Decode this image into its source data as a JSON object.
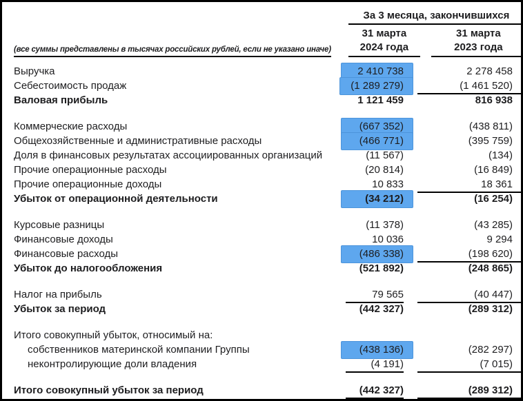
{
  "document": {
    "note": "(все суммы представлены в тысячах российских рублей, если не указано иначе)",
    "period_header": "За 3 месяца, закончившихся",
    "columns": [
      {
        "line1": "31 марта",
        "line2": "2024 года"
      },
      {
        "line1": "31 марта",
        "line2": "2023 года"
      }
    ],
    "colors": {
      "highlight_fill": "#5EA7EE",
      "highlight_border": "#4C94DB",
      "text": "#1D1D1F",
      "rule": "#000000"
    },
    "rows": [
      {
        "label": "Выручка",
        "v2024": "2 410 738",
        "v2023": "2 278 458",
        "hl": true
      },
      {
        "label": "Себестоимость продаж",
        "v2024": "(1 289 279)",
        "v2023": "(1 461 520)",
        "hl": true,
        "line": "single"
      },
      {
        "label": "Валовая прибыль",
        "v2024": "1 121 459",
        "v2023": "816 938",
        "bold": true
      },
      {
        "label": "Коммерческие расходы",
        "v2024": "(667 352)",
        "v2023": "(438 811)",
        "hl": true,
        "group_start": true
      },
      {
        "label": "Общехозяйственные и административные расходы",
        "v2024": "(466 771)",
        "v2023": "(395 759)",
        "hl": true
      },
      {
        "label": "Доля в финансовых результатах ассоциированных организаций",
        "v2024": "(11 567)",
        "v2023": "(134)"
      },
      {
        "label": "Прочие операционные расходы",
        "v2024": "(20 814)",
        "v2023": "(16 849)"
      },
      {
        "label": "Прочие операционные доходы",
        "v2024": "10 833",
        "v2023": "18 361",
        "line": "single"
      },
      {
        "label": "Убыток от операционной деятельности",
        "v2024": "(34 212)",
        "v2023": "(16 254)",
        "bold": true,
        "hl": true
      },
      {
        "label": "Курсовые разницы",
        "v2024": "(11 378)",
        "v2023": "(43 285)",
        "group_start": true
      },
      {
        "label": "Финансовые доходы",
        "v2024": "10 036",
        "v2023": "9 294"
      },
      {
        "label": "Финансовые расходы",
        "v2024": "(486 338)",
        "v2023": "(198 620)",
        "hl": true,
        "line": "single"
      },
      {
        "label": "Убыток до налогообложения",
        "v2024": "(521 892)",
        "v2023": "(248 865)",
        "bold": true
      },
      {
        "label": "Налог на прибыль",
        "v2024": "79 565",
        "v2023": "(40 447)",
        "line": "single",
        "group_start": true
      },
      {
        "label": "Убыток за период",
        "v2024": "(442 327)",
        "v2023": "(289 312)",
        "bold": true
      },
      {
        "label": "Итого совокупный убыток, относимый на:",
        "v2024": "",
        "v2023": "",
        "group_start": true
      },
      {
        "label": "собственников материнской компании Группы",
        "v2024": "(438 136)",
        "v2023": "(282 297)",
        "indent": true,
        "hl": true
      },
      {
        "label": "неконтролирующие доли владения",
        "v2024": "(4 191)",
        "v2023": "(7 015)",
        "indent": true,
        "line": "single"
      },
      {
        "label": "Итого совокупный убыток за период",
        "v2024": "(442 327)",
        "v2023": "(289 312)",
        "bold": true,
        "line": "double",
        "group_start": true
      }
    ]
  }
}
